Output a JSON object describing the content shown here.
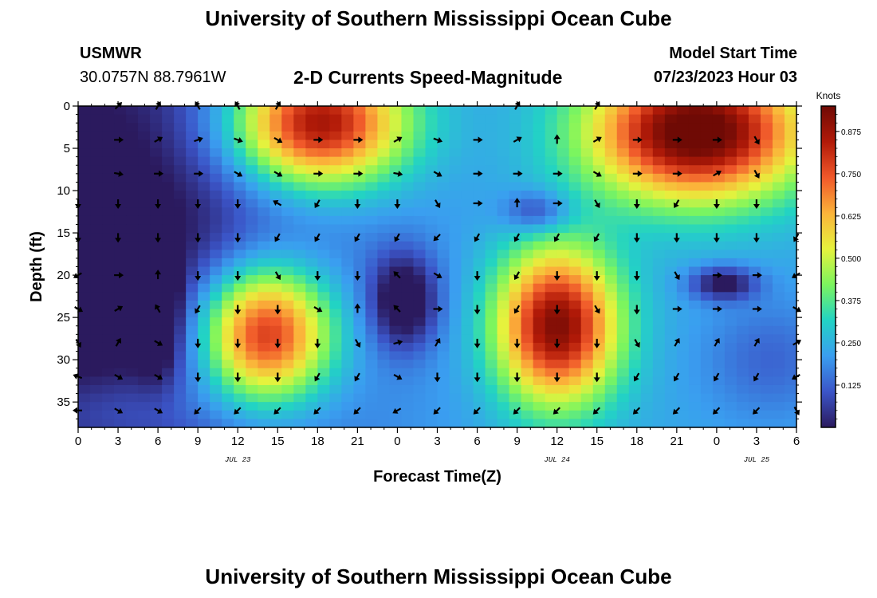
{
  "header": {
    "title": "University of Southern Mississippi Ocean Cube",
    "station_name": "USMWR",
    "station_coords": "30.0757N  88.7961W",
    "plot_title": "2-D Currents Speed-Magnitude",
    "start_label": "Model Start Time",
    "start_value": "07/23/2023 Hour 03"
  },
  "footer": {
    "title": "University of Southern Mississippi Ocean Cube"
  },
  "chart_data": {
    "type": "heatmap",
    "title": "2-D Currents Speed-Magnitude",
    "xlabel": "Forecast Time(Z)",
    "ylabel": "Depth (ft)",
    "x_ticks": [
      "0",
      "3",
      "6",
      "9",
      "12",
      "15",
      "18",
      "21",
      "0",
      "3",
      "6",
      "9",
      "12",
      "15",
      "18",
      "21",
      "0",
      "3",
      "6"
    ],
    "x_range_hours": [
      0,
      54
    ],
    "date_labels": [
      {
        "hour": 12,
        "text": "JUL 23"
      },
      {
        "hour": 36,
        "text": "JUL 24"
      },
      {
        "hour": 51,
        "text": "JUL 25"
      }
    ],
    "y_ticks": [
      0,
      5,
      10,
      15,
      20,
      25,
      30,
      35
    ],
    "y_range_ft": [
      0,
      38
    ],
    "colorbar": {
      "unit": "Knots",
      "range": [
        0,
        0.95
      ],
      "ticks": [
        0.125,
        0.25,
        0.375,
        0.5,
        0.625,
        0.75,
        0.875
      ],
      "tick_labels": [
        "0.125",
        "0.250",
        "0.375",
        "0.500",
        "0.625",
        "0.750",
        "0.875"
      ],
      "colors": [
        "#2b1a5e",
        "#3b55c8",
        "#3a9ef0",
        "#22d3c4",
        "#7cf55e",
        "#e6f23d",
        "#fbb33a",
        "#f0582a",
        "#b11a08",
        "#6f0a05"
      ]
    },
    "speed_features": [
      {
        "hour": 0,
        "depth": 20,
        "rx": 18,
        "ry": 40,
        "value": -0.3
      },
      {
        "hour": 18,
        "depth": 2,
        "rx": 6.5,
        "ry": 7.5,
        "value": 0.72
      },
      {
        "hour": 14,
        "depth": 27,
        "rx": 5,
        "ry": 8,
        "value": 0.7
      },
      {
        "hour": 6,
        "depth": 24,
        "rx": 1.6,
        "ry": 7,
        "value": -0.22
      },
      {
        "hour": 24.5,
        "depth": 23,
        "rx": 2.5,
        "ry": 5.5,
        "value": -0.28
      },
      {
        "hour": 34.5,
        "depth": 12.5,
        "rx": 2.5,
        "ry": 2.5,
        "value": -0.18
      },
      {
        "hour": 36,
        "depth": 26,
        "rx": 4.5,
        "ry": 9,
        "value": 0.7
      },
      {
        "hour": 46.5,
        "depth": 3,
        "rx": 8,
        "ry": 8,
        "value": 0.78
      },
      {
        "hour": 48.5,
        "depth": 21,
        "rx": 2.5,
        "ry": 2,
        "value": -0.25
      },
      {
        "hour": 0,
        "depth": 5,
        "rx": 1.5,
        "ry": 5,
        "value": -0.12
      },
      {
        "hour": 3,
        "depth": 36,
        "rx": 8,
        "ry": 5,
        "value": 0.1
      },
      {
        "hour": 52,
        "depth": 30,
        "rx": 5,
        "ry": 7,
        "value": -0.1
      }
    ],
    "arrow_rows_depth": [
      0,
      4,
      8,
      11.5,
      15.5,
      20,
      24,
      28,
      32,
      36
    ],
    "arrow_cols_hour": [
      0,
      3,
      6,
      9,
      12,
      15,
      18,
      21,
      24,
      27,
      30,
      33,
      36,
      39,
      42,
      45,
      48,
      51,
      54
    ],
    "arrow_directions_deg": [
      [
        null,
        315,
        300,
        240,
        240,
        300,
        null,
        null,
        null,
        null,
        null,
        300,
        null,
        300,
        null,
        null,
        null,
        null,
        null
      ],
      [
        null,
        0,
        330,
        340,
        20,
        30,
        0,
        0,
        330,
        20,
        0,
        330,
        270,
        330,
        0,
        0,
        0,
        60,
        null
      ],
      [
        null,
        10,
        0,
        0,
        30,
        30,
        0,
        0,
        10,
        30,
        0,
        0,
        0,
        30,
        0,
        0,
        330,
        60,
        null
      ],
      [
        90,
        90,
        90,
        90,
        90,
        210,
        120,
        90,
        90,
        60,
        0,
        270,
        0,
        60,
        90,
        120,
        90,
        90,
        null
      ],
      [
        90,
        90,
        90,
        90,
        90,
        120,
        120,
        120,
        120,
        135,
        120,
        120,
        120,
        120,
        90,
        90,
        90,
        90,
        120
      ],
      [
        150,
        0,
        270,
        90,
        90,
        60,
        90,
        90,
        225,
        30,
        90,
        120,
        90,
        90,
        90,
        60,
        0,
        0,
        150
      ],
      [
        30,
        330,
        240,
        120,
        90,
        90,
        30,
        270,
        225,
        0,
        90,
        120,
        90,
        60,
        90,
        0,
        0,
        0,
        30
      ],
      [
        60,
        300,
        30,
        90,
        90,
        90,
        90,
        60,
        345,
        300,
        90,
        90,
        90,
        90,
        60,
        300,
        300,
        300,
        330
      ],
      [
        200,
        30,
        30,
        90,
        90,
        90,
        120,
        120,
        30,
        90,
        90,
        90,
        90,
        90,
        120,
        120,
        120,
        120,
        150
      ],
      [
        180,
        30,
        30,
        135,
        135,
        135,
        135,
        135,
        150,
        135,
        135,
        135,
        135,
        135,
        135,
        135,
        135,
        135,
        60
      ]
    ]
  }
}
